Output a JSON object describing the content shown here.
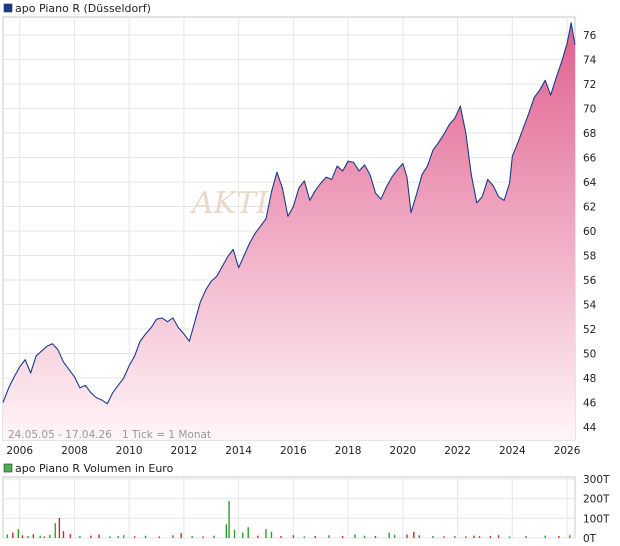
{
  "chart_data": [
    {
      "type": "area",
      "legend": {
        "label": "apo Piano R (Düsseldorf)",
        "color": "#1a3a8c",
        "placement": "top-left"
      },
      "info_text": "24.05.05 - 17.04.26   1 Tick = 1 Monat",
      "watermark": "AKTI",
      "x_ticks": [
        "2006",
        "2008",
        "2010",
        "2012",
        "2014",
        "2016",
        "2018",
        "2020",
        "2022",
        "2024",
        "2026"
      ],
      "ylim": [
        42.5,
        78
      ],
      "y_ticks": [
        44,
        46,
        48,
        50,
        52,
        54,
        56,
        58,
        60,
        62,
        64,
        66,
        68,
        70,
        72,
        74,
        76
      ],
      "grid": true,
      "colors": {
        "line": "#1a3a8c",
        "fill_top": "#e0608e",
        "fill_bottom": "#fff5f8",
        "grid": "#e6e6e6"
      },
      "series": [
        {
          "x": [
            2005.39,
            2005.6,
            2005.8,
            2006.0,
            2006.2,
            2006.4,
            2006.6,
            2006.8,
            2007.0,
            2007.2,
            2007.4,
            2007.6,
            2007.8,
            2008.0,
            2008.2,
            2008.4,
            2008.6,
            2008.8,
            2009.0,
            2009.2,
            2009.4,
            2009.6,
            2009.8,
            2010.0,
            2010.2,
            2010.4,
            2010.6,
            2010.8,
            2011.0,
            2011.2,
            2011.4,
            2011.6,
            2011.8,
            2012.0,
            2012.2,
            2012.4,
            2012.6,
            2012.8,
            2013.0,
            2013.2,
            2013.4,
            2013.6,
            2013.8,
            2014.0,
            2014.2,
            2014.4,
            2014.6,
            2014.8,
            2015.0,
            2015.2,
            2015.4,
            2015.6,
            2015.8,
            2016.0,
            2016.2,
            2016.4,
            2016.6,
            2016.8,
            2017.0,
            2017.2,
            2017.4,
            2017.6,
            2017.8,
            2018.0,
            2018.2,
            2018.4,
            2018.6,
            2018.8,
            2019.0,
            2019.2,
            2019.4,
            2019.6,
            2019.8,
            2020.0,
            2020.15,
            2020.3,
            2020.5,
            2020.7,
            2020.9,
            2021.1,
            2021.3,
            2021.5,
            2021.7,
            2021.9,
            2022.1,
            2022.3,
            2022.5,
            2022.7,
            2022.9,
            2023.1,
            2023.3,
            2023.5,
            2023.7,
            2023.9,
            2024.0,
            2024.2,
            2024.4,
            2024.6,
            2024.8,
            2025.0,
            2025.2,
            2025.4,
            2025.6,
            2025.8,
            2026.0,
            2026.15,
            2026.29
          ],
          "values": [
            46.0,
            47.2,
            48.1,
            48.9,
            49.5,
            48.4,
            49.8,
            50.2,
            50.6,
            50.8,
            50.3,
            49.3,
            48.7,
            48.1,
            47.2,
            47.4,
            46.8,
            46.4,
            46.2,
            45.9,
            46.8,
            47.4,
            48.0,
            49.0,
            49.8,
            51.0,
            51.6,
            52.1,
            52.8,
            52.9,
            52.6,
            52.9,
            52.1,
            51.6,
            51.0,
            52.6,
            54.2,
            55.2,
            55.9,
            56.3,
            57.1,
            57.9,
            58.5,
            57.0,
            58.0,
            59.0,
            59.8,
            60.4,
            61.0,
            63.2,
            64.8,
            63.5,
            61.2,
            62.0,
            63.5,
            64.1,
            62.5,
            63.3,
            63.9,
            64.4,
            64.2,
            65.3,
            64.9,
            65.7,
            65.6,
            64.9,
            65.4,
            64.6,
            63.1,
            62.6,
            63.6,
            64.4,
            65.0,
            65.5,
            64.4,
            61.5,
            63.0,
            64.6,
            65.3,
            66.6,
            67.2,
            67.9,
            68.7,
            69.2,
            70.2,
            68.0,
            64.6,
            62.3,
            62.8,
            64.2,
            63.7,
            62.8,
            62.5,
            63.9,
            66.1,
            67.2,
            68.4,
            69.6,
            70.9,
            71.5,
            72.3,
            71.1,
            72.5,
            73.8,
            75.3,
            77.0,
            75.2
          ]
        }
      ]
    },
    {
      "type": "bar",
      "legend": {
        "label": "apo Piano R Volumen in Euro",
        "color": "#4caf50",
        "placement": "top-left"
      },
      "y_ticks": [
        "0T",
        "100T",
        "200T",
        "300T"
      ],
      "ylim": [
        0,
        300
      ],
      "colors": {
        "up": "#2ca02c",
        "down": "#d62728"
      },
      "values": [
        {
          "x": 2005.55,
          "v": 18,
          "d": "up"
        },
        {
          "x": 2005.75,
          "v": 28,
          "d": "down"
        },
        {
          "x": 2005.95,
          "v": 45,
          "d": "up"
        },
        {
          "x": 2006.1,
          "v": 14,
          "d": "down"
        },
        {
          "x": 2006.3,
          "v": 10,
          "d": "up"
        },
        {
          "x": 2006.5,
          "v": 20,
          "d": "down"
        },
        {
          "x": 2006.75,
          "v": 12,
          "d": "up"
        },
        {
          "x": 2006.9,
          "v": 8,
          "d": "down"
        },
        {
          "x": 2007.1,
          "v": 16,
          "d": "up"
        },
        {
          "x": 2007.3,
          "v": 75,
          "d": "up"
        },
        {
          "x": 2007.45,
          "v": 102,
          "d": "down"
        },
        {
          "x": 2007.6,
          "v": 35,
          "d": "down"
        },
        {
          "x": 2007.85,
          "v": 20,
          "d": "down"
        },
        {
          "x": 2008.2,
          "v": 10,
          "d": "up"
        },
        {
          "x": 2008.6,
          "v": 12,
          "d": "down"
        },
        {
          "x": 2008.9,
          "v": 18,
          "d": "down"
        },
        {
          "x": 2009.3,
          "v": 8,
          "d": "up"
        },
        {
          "x": 2009.6,
          "v": 10,
          "d": "up"
        },
        {
          "x": 2009.8,
          "v": 14,
          "d": "up"
        },
        {
          "x": 2010.2,
          "v": 9,
          "d": "down"
        },
        {
          "x": 2010.6,
          "v": 12,
          "d": "up"
        },
        {
          "x": 2011.1,
          "v": 8,
          "d": "down"
        },
        {
          "x": 2011.6,
          "v": 14,
          "d": "up"
        },
        {
          "x": 2011.9,
          "v": 25,
          "d": "down"
        },
        {
          "x": 2012.3,
          "v": 10,
          "d": "up"
        },
        {
          "x": 2012.7,
          "v": 8,
          "d": "down"
        },
        {
          "x": 2013.1,
          "v": 12,
          "d": "up"
        },
        {
          "x": 2013.55,
          "v": 70,
          "d": "up"
        },
        {
          "x": 2013.65,
          "v": 188,
          "d": "up"
        },
        {
          "x": 2013.85,
          "v": 42,
          "d": "up"
        },
        {
          "x": 2014.15,
          "v": 28,
          "d": "up"
        },
        {
          "x": 2014.35,
          "v": 55,
          "d": "up"
        },
        {
          "x": 2014.7,
          "v": 12,
          "d": "down"
        },
        {
          "x": 2015.0,
          "v": 45,
          "d": "up"
        },
        {
          "x": 2015.2,
          "v": 32,
          "d": "up"
        },
        {
          "x": 2015.55,
          "v": 10,
          "d": "down"
        },
        {
          "x": 2016.0,
          "v": 14,
          "d": "down"
        },
        {
          "x": 2016.4,
          "v": 8,
          "d": "up"
        },
        {
          "x": 2016.8,
          "v": 10,
          "d": "down"
        },
        {
          "x": 2017.3,
          "v": 14,
          "d": "up"
        },
        {
          "x": 2017.8,
          "v": 10,
          "d": "down"
        },
        {
          "x": 2018.25,
          "v": 18,
          "d": "up"
        },
        {
          "x": 2018.6,
          "v": 12,
          "d": "up"
        },
        {
          "x": 2019.0,
          "v": 10,
          "d": "down"
        },
        {
          "x": 2019.5,
          "v": 28,
          "d": "up"
        },
        {
          "x": 2019.7,
          "v": 16,
          "d": "up"
        },
        {
          "x": 2020.15,
          "v": 18,
          "d": "down"
        },
        {
          "x": 2020.4,
          "v": 32,
          "d": "down"
        },
        {
          "x": 2020.6,
          "v": 14,
          "d": "up"
        },
        {
          "x": 2021.1,
          "v": 10,
          "d": "up"
        },
        {
          "x": 2021.5,
          "v": 8,
          "d": "down"
        },
        {
          "x": 2021.9,
          "v": 10,
          "d": "up"
        },
        {
          "x": 2022.3,
          "v": 8,
          "d": "down"
        },
        {
          "x": 2022.6,
          "v": 12,
          "d": "down"
        },
        {
          "x": 2022.8,
          "v": 10,
          "d": "up"
        },
        {
          "x": 2023.2,
          "v": 10,
          "d": "down"
        },
        {
          "x": 2023.5,
          "v": 14,
          "d": "down"
        },
        {
          "x": 2023.9,
          "v": 8,
          "d": "up"
        },
        {
          "x": 2024.5,
          "v": 10,
          "d": "up"
        },
        {
          "x": 2025.2,
          "v": 12,
          "d": "up"
        },
        {
          "x": 2025.7,
          "v": 10,
          "d": "down"
        },
        {
          "x": 2026.1,
          "v": 14,
          "d": "up"
        }
      ]
    }
  ]
}
